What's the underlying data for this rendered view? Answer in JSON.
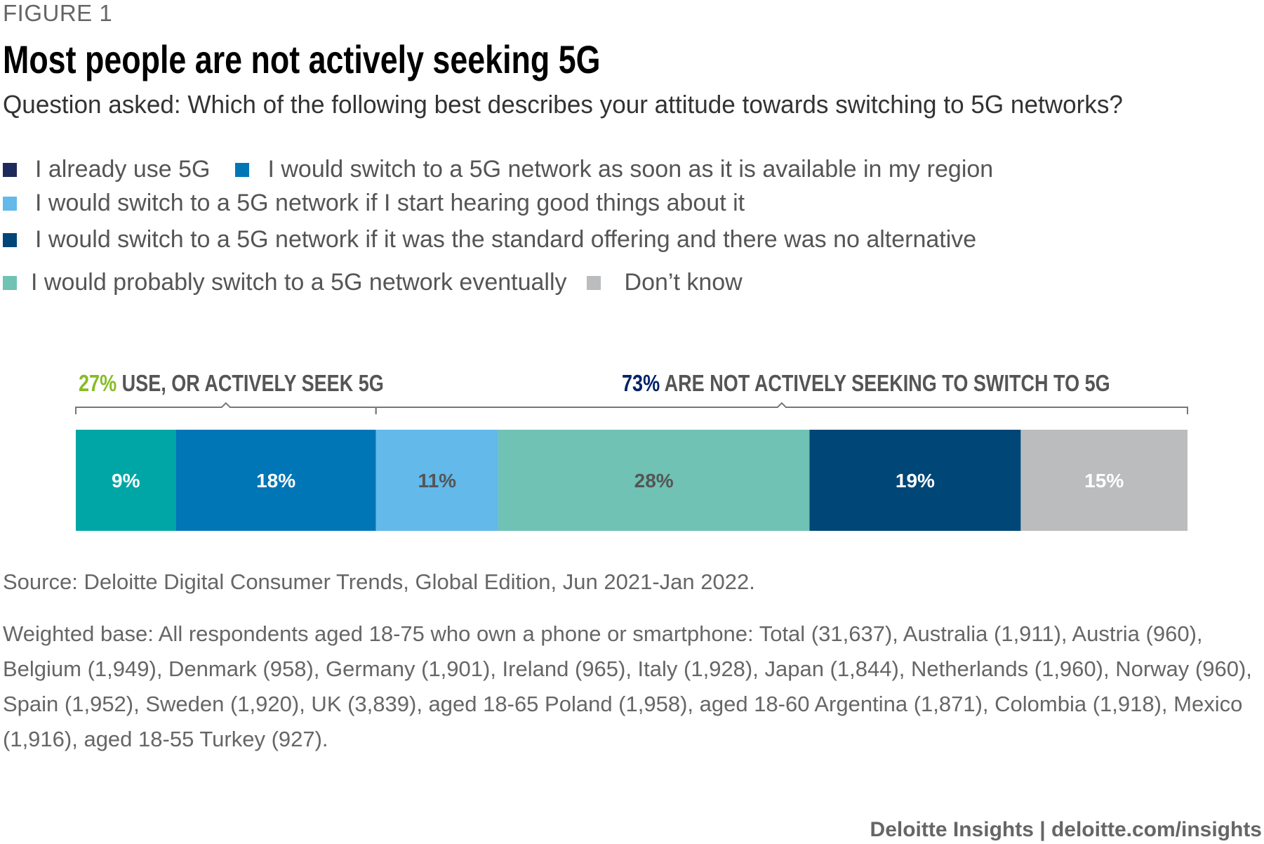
{
  "figure_label": "FIGURE 1",
  "chart_data": {
    "type": "bar",
    "orientation": "horizontal-stacked-100",
    "title": "Most people are not actively seeking 5G",
    "subtitle": "Question asked: Which of the following best describes your attitude towards switching to 5G networks?",
    "segments": [
      {
        "label": "9%",
        "value": 9,
        "color": "#00a6a6",
        "text_color": "#ffffff"
      },
      {
        "label": "18%",
        "value": 18,
        "color": "#0076b6",
        "text_color": "#ffffff"
      },
      {
        "label": "11%",
        "value": 11,
        "color": "#62b9ea",
        "text_color": "#555555"
      },
      {
        "label": "28%",
        "value": 28,
        "color": "#6fc2b4",
        "text_color": "#555555"
      },
      {
        "label": "19%",
        "value": 19,
        "color": "#004677",
        "text_color": "#ffffff"
      },
      {
        "label": "15%",
        "value": 15,
        "color": "#bbbcbe",
        "text_color": "#ffffff"
      }
    ],
    "brackets": [
      {
        "pct": "27%",
        "text": " USE, OR ACTIVELY SEEK 5G",
        "pct_color": "#86bc25",
        "start": 0,
        "end": 27
      },
      {
        "pct": "73%",
        "text": " ARE NOT ACTIVELY SEEKING TO SWITCH TO 5G",
        "pct_color": "#012169",
        "start": 27,
        "end": 100
      }
    ]
  },
  "legend": {
    "row1": [
      {
        "label": "I already use 5G",
        "color": "#1f2a5c"
      },
      {
        "label": "I would switch to a 5G network as soon as it is available in my region",
        "color": "#0076b6"
      }
    ],
    "row2": [
      {
        "label": "I would switch to a 5G network if I start hearing good things about it",
        "color": "#62b9ea"
      }
    ],
    "row3": [
      {
        "label": "I would switch to a 5G network if it was the standard offering and there was no alternative",
        "color": "#004677"
      }
    ],
    "row4": [
      {
        "label": "I would probably switch to a 5G network eventually",
        "color": "#6fc2b4"
      },
      {
        "label": "Don’t know",
        "color": "#bbbcbe"
      }
    ]
  },
  "source": "Source: Deloitte Digital Consumer Trends, Global Edition, Jun 2021-Jan 2022.",
  "base": "Weighted base: All respondents aged 18-75 who own a phone or smartphone: Total (31,637), Australia (1,911), Austria (960), Belgium (1,949), Denmark (958), Germany (1,901), Ireland (965), Italy (1,928), Japan (1,844),  Netherlands (1,960),  Norway (960), Spain (1,952), Sweden (1,920), UK (3,839), aged 18-65 Poland (1,958), aged 18-60 Argentina (1,871), Colombia (1,918), Mexico (1,916), aged 18-55 Turkey (927).",
  "footer": "Deloitte Insights | deloitte.com/insights"
}
